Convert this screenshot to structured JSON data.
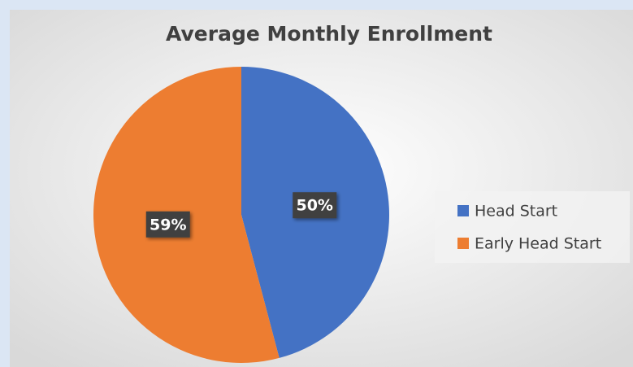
{
  "chart_data": {
    "type": "pie",
    "title": "Average Monthly Enrollment",
    "categories": [
      "Head Start",
      "Early Head Start"
    ],
    "values": [
      50,
      59
    ],
    "value_labels": [
      "50%",
      "59%"
    ],
    "colors": [
      "#4472c4",
      "#ed7d31"
    ],
    "legend": "right"
  }
}
